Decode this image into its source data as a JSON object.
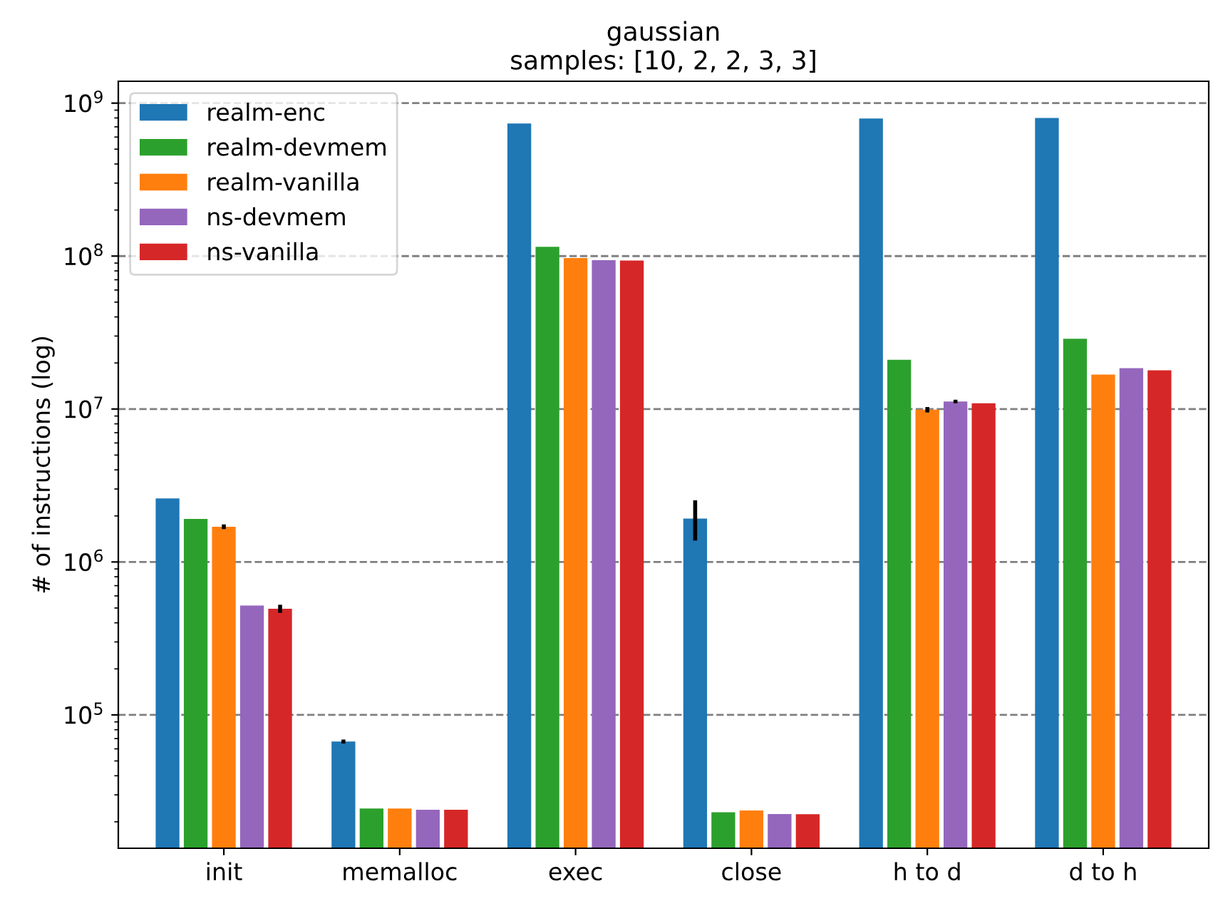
{
  "chart_data": {
    "type": "bar",
    "title": "gaussian",
    "subtitle": "samples: [10, 2, 2, 3, 3]",
    "ylabel": "# of instructions (log)",
    "categories": [
      "init",
      "memalloc",
      "exec",
      "close",
      "h to d",
      "d to h"
    ],
    "series": [
      {
        "name": "realm-enc",
        "color": "#1f77b4",
        "values": [
          2600000,
          67000,
          736000000,
          1920000,
          794000000,
          800000000
        ],
        "errors": [
          null,
          2000,
          null,
          [
            1380000,
            2530000
          ],
          null,
          null
        ]
      },
      {
        "name": "realm-devmem",
        "color": "#2ca02c",
        "values": [
          1910000,
          24400,
          115000000,
          23100,
          21000000,
          28800000
        ]
      },
      {
        "name": "realm-vanilla",
        "color": "#ff7f0e",
        "values": [
          1700000,
          24400,
          97000000,
          23700,
          9900000,
          16800000
        ],
        "errors": [
          60000,
          null,
          null,
          null,
          400000,
          null
        ]
      },
      {
        "name": "ns-devmem",
        "color": "#9467bd",
        "values": [
          519000,
          24000,
          94000000,
          22500,
          11200000,
          18500000
        ],
        "errors": [
          null,
          null,
          null,
          null,
          300000,
          null
        ]
      },
      {
        "name": "ns-vanilla",
        "color": "#d62728",
        "values": [
          495000,
          24000,
          93500000,
          22400,
          10900000,
          17900000
        ],
        "errors": [
          30000,
          null,
          null,
          null,
          null,
          null
        ]
      }
    ],
    "log": "y",
    "ylim": [
      13430,
      1390000000
    ],
    "yticks": [
      {
        "value": 100000,
        "label": "10$^{5}$"
      },
      {
        "value": 1000000,
        "label": "10$^{6}$"
      },
      {
        "value": 10000000,
        "label": "10$^{7}$"
      },
      {
        "value": 100000000,
        "label": "10$^{8}$"
      },
      {
        "value": 1000000000,
        "label": "10$^{9}$"
      }
    ],
    "grid": "y",
    "legend": "top left"
  }
}
